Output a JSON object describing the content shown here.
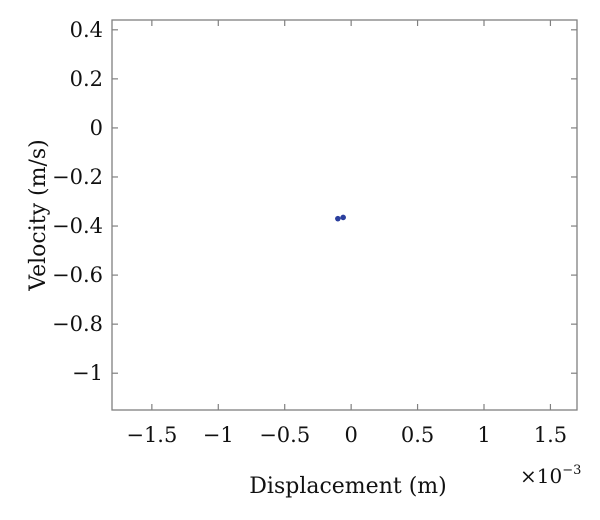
{
  "chart_data": {
    "type": "scatter",
    "title": "",
    "xlabel": "Displacement (m)",
    "ylabel": "Velocity (m/s)",
    "x_multiplier_base": "×10",
    "x_multiplier_exponent": "−3",
    "xlim": [
      -0.0018,
      0.0017
    ],
    "ylim": [
      -1.15,
      0.44
    ],
    "x_ticks": [
      -0.0015,
      -0.001,
      -0.0005,
      0,
      0.0005,
      0.001,
      0.0015
    ],
    "x_tick_labels": [
      "−1.5",
      "−1",
      "−0.5",
      "0",
      "0.5",
      "1",
      "1.5"
    ],
    "y_ticks": [
      0.4,
      0.2,
      0,
      -0.2,
      -0.4,
      -0.6,
      -0.8,
      -1
    ],
    "y_tick_labels": [
      "0.4",
      "0.2",
      "0",
      "−0.2",
      "−0.4",
      "−0.6",
      "−0.8",
      "−1"
    ],
    "grid": false,
    "legend": "none",
    "points": [
      {
        "x": -0.0001,
        "y": -0.37
      },
      {
        "x": -6e-05,
        "y": -0.365
      }
    ],
    "marker_color": "#2b3f9e"
  }
}
